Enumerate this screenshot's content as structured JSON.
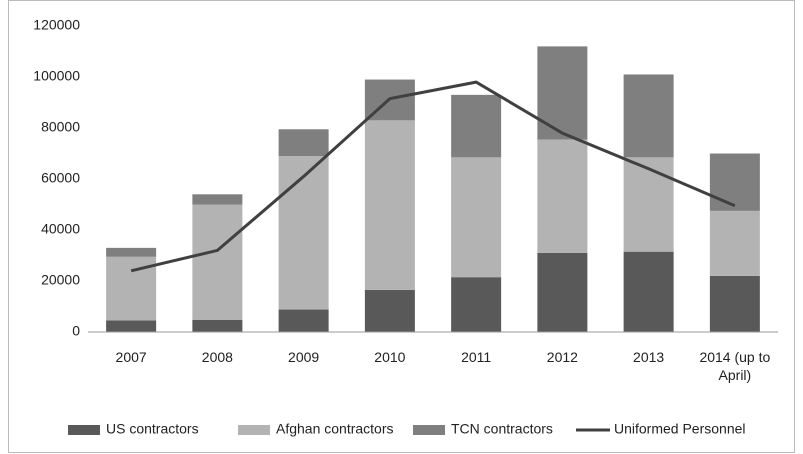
{
  "chart_data": {
    "type": "stacked-bar-line",
    "categories": [
      "2007",
      "2008",
      "2009",
      "2010",
      "2011",
      "2012",
      "2013",
      "2014 (up to April)"
    ],
    "series": [
      {
        "name": "US contractors",
        "color": "#595959",
        "values": [
          4500,
          4800,
          8800,
          16500,
          21500,
          31000,
          31500,
          22000
        ]
      },
      {
        "name": "Afghan contractors",
        "color": "#b3b3b3",
        "values": [
          25000,
          45200,
          60200,
          66500,
          47000,
          44500,
          37000,
          25500
        ]
      },
      {
        "name": "TCN contractors",
        "color": "#7f7f7f",
        "values": [
          3500,
          4000,
          10500,
          16000,
          24500,
          36500,
          32500,
          22500
        ]
      },
      {
        "name": "Uniformed Personnel",
        "color": "#404040",
        "type": "line",
        "values": [
          24000,
          32000,
          61000,
          91500,
          98000,
          78000,
          64000,
          49500
        ]
      }
    ],
    "ylim": [
      0,
      120000
    ],
    "yticks": [
      0,
      20000,
      40000,
      60000,
      80000,
      100000,
      120000
    ],
    "grid": false,
    "legend": "bottom"
  }
}
